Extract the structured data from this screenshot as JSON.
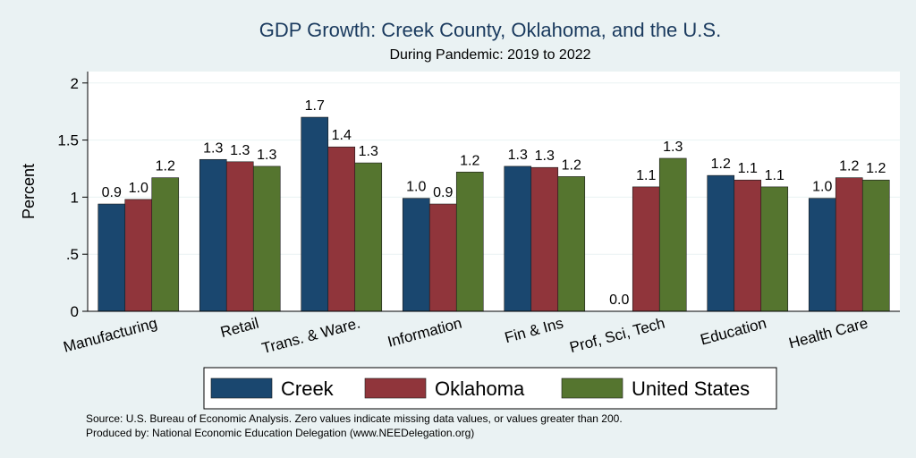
{
  "chart_data": {
    "type": "bar",
    "title": "GDP Growth: Creek County, Oklahoma, and the U.S.",
    "subtitle": "During Pandemic: 2019 to 2022",
    "ylabel": "Percent",
    "ylim": [
      0,
      2.1
    ],
    "yticks": [
      {
        "value": 0,
        "label": "0"
      },
      {
        "value": 0.5,
        "label": ".5"
      },
      {
        "value": 1,
        "label": "1"
      },
      {
        "value": 1.5,
        "label": "1.5"
      },
      {
        "value": 2,
        "label": "2"
      }
    ],
    "grid": true,
    "legend_position": "bottom",
    "categories": [
      "Manufacturing",
      "Retail",
      "Trans. & Ware.",
      "Information",
      "Fin & Ins",
      "Prof, Sci, Tech",
      "Education",
      "Health Care"
    ],
    "series": [
      {
        "name": "Creek",
        "color": "#1a476f",
        "values": [
          0.94,
          1.33,
          1.7,
          0.99,
          1.27,
          0.0,
          1.19,
          0.99
        ],
        "labels": [
          "0.9",
          "1.3",
          "1.7",
          "1.0",
          "1.3",
          "0.0",
          "1.2",
          "1.0"
        ]
      },
      {
        "name": "Oklahoma",
        "color": "#90353b",
        "values": [
          0.98,
          1.31,
          1.44,
          0.94,
          1.26,
          1.09,
          1.15,
          1.17
        ],
        "labels": [
          "1.0",
          "1.3",
          "1.4",
          "0.9",
          "1.3",
          "1.1",
          "1.1",
          "1.2"
        ]
      },
      {
        "name": "United States",
        "color": "#55752f",
        "values": [
          1.17,
          1.27,
          1.3,
          1.22,
          1.18,
          1.34,
          1.09,
          1.15
        ],
        "labels": [
          "1.2",
          "1.3",
          "1.3",
          "1.2",
          "1.2",
          "1.3",
          "1.1",
          "1.2"
        ]
      }
    ]
  },
  "notes": {
    "source": "Source: U.S. Bureau of Economic Analysis. Zero values indicate missing data values, or values greater than 200.",
    "produced_by": "Produced by: National Economic Education Delegation (www.NEEDelegation.org)"
  }
}
